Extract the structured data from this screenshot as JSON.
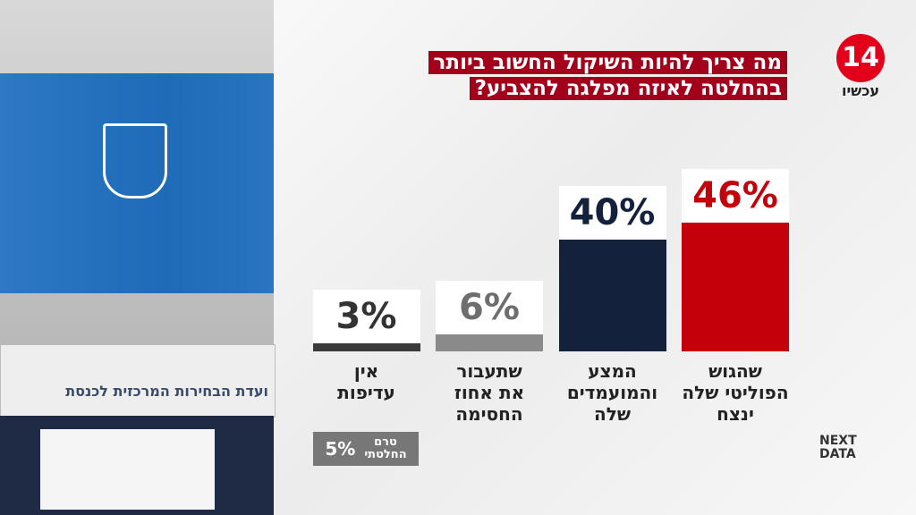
{
  "chart_data": {
    "type": "bar",
    "title": "מה צריך להיות השיקול החשוב ביותר\nבהחלטה לאיזה מפלגה להצביע?",
    "categories": [
      "שהגוש\nהפוליטי שלה\nינצח",
      "המצע\nוהמועמדים\nשלה",
      "שתעבור\nאת אחוז\nהחסימה",
      "אין\nעדיפות"
    ],
    "values": [
      46,
      40,
      6,
      3
    ],
    "value_labels": [
      "46%",
      "40%",
      "6%",
      "3%"
    ],
    "colors": [
      "#c4000b",
      "#14213d",
      "#8a8a8a",
      "#3a3a3a"
    ],
    "value_label_colors": [
      "#c4000b",
      "#14213d",
      "#6e6e6e",
      "#333333"
    ],
    "note": {
      "label": "טרם\nהחלטתי",
      "value": 5,
      "value_label": "5%"
    }
  },
  "logo": {
    "number": "14",
    "text": "עכשיו"
  },
  "source_logo": "NEXT\nDATA",
  "photo_sign": "ועדת הבחירות המרכזית לכנסת"
}
